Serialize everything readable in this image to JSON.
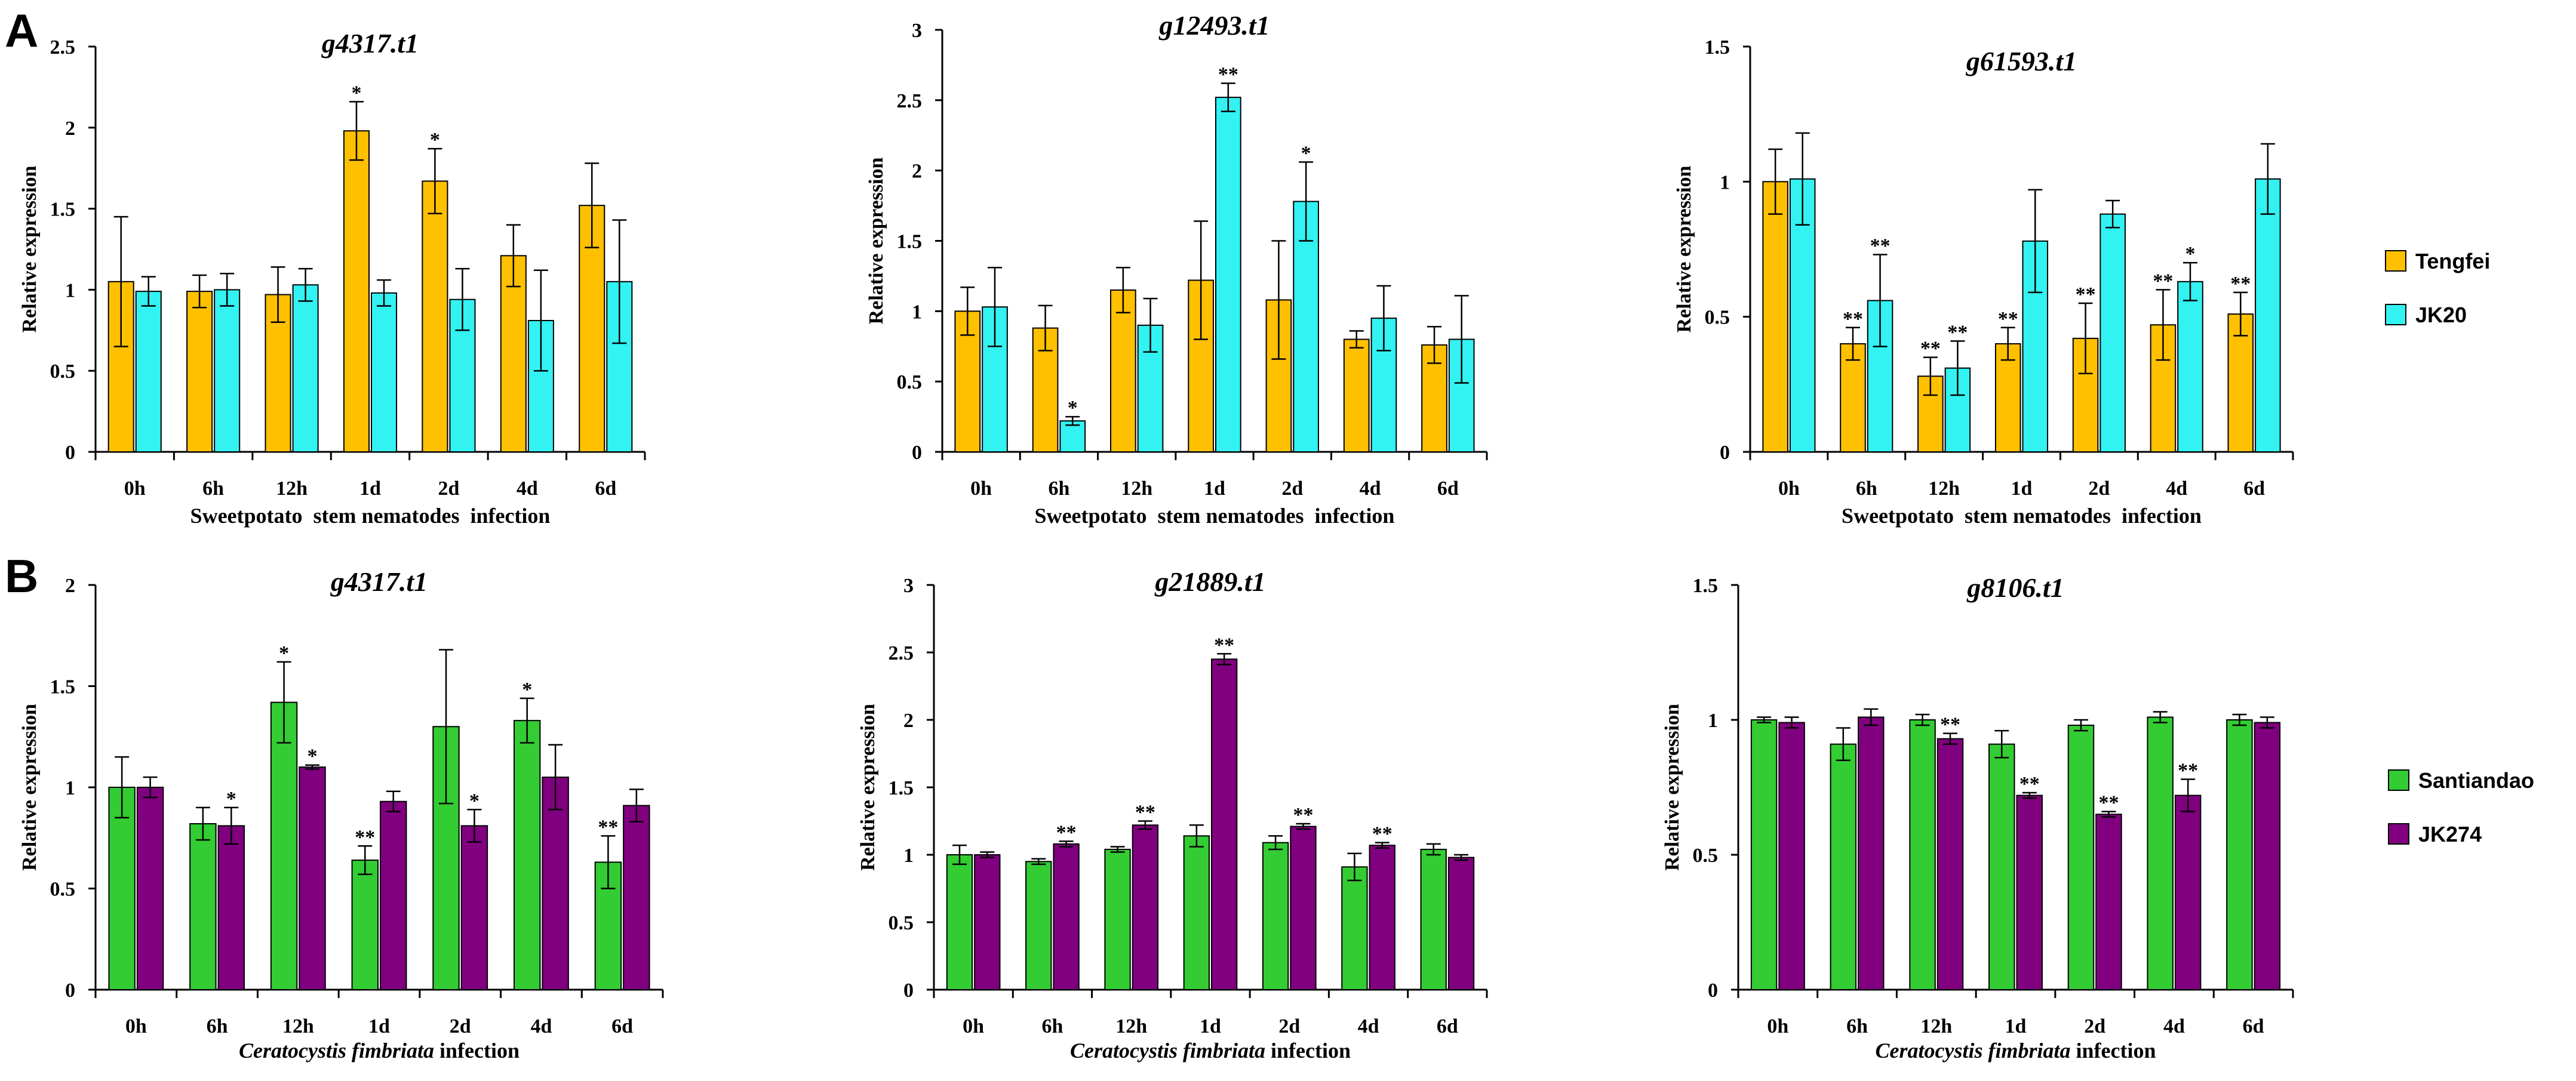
{
  "panel_labels": {
    "A": "A",
    "B": "B"
  },
  "ylabel": "Relative expression",
  "colors": {
    "tengfei": "#FFC000",
    "jk20": "#33F2F2",
    "santiandao": "#33CC33",
    "jk274": "#800080"
  },
  "legends": {
    "A": [
      {
        "name": "Tengfei",
        "color": "#FFC000"
      },
      {
        "name": "JK20",
        "color": "#33F2F2"
      }
    ],
    "B": [
      {
        "name": "Santiandao",
        "color": "#33CC33"
      },
      {
        "name": "JK274",
        "color": "#800080"
      }
    ]
  },
  "chart_data": [
    {
      "type": "bar",
      "panel": "A",
      "title": "g4317.t1",
      "xlabel": "Sweetpotato  stem nematodes  infection",
      "ylabel": "Relative expression",
      "categories": [
        "0h",
        "6h",
        "12h",
        "1d",
        "2d",
        "4d",
        "6d"
      ],
      "ylim": [
        0,
        2.5
      ],
      "yticks": [
        "0",
        "0.5",
        "1",
        "1.5",
        "2",
        "2.5"
      ],
      "series": [
        {
          "name": "Tengfei",
          "values": [
            1.05,
            0.99,
            0.97,
            1.98,
            1.67,
            1.21,
            1.52
          ],
          "errors": [
            0.4,
            0.1,
            0.17,
            0.18,
            0.2,
            0.19,
            0.26
          ],
          "sig": [
            "",
            "",
            "",
            "*",
            "*",
            "",
            ""
          ]
        },
        {
          "name": "JK20",
          "values": [
            0.99,
            1.0,
            1.03,
            0.98,
            0.94,
            0.81,
            1.05
          ],
          "errors": [
            0.09,
            0.1,
            0.1,
            0.08,
            0.19,
            0.31,
            0.38
          ],
          "sig": [
            "",
            "",
            "",
            "",
            "",
            "",
            ""
          ]
        }
      ]
    },
    {
      "type": "bar",
      "panel": "A",
      "title": "g12493.t1",
      "xlabel": "Sweetpotato  stem nematodes  infection",
      "ylabel": "Relative expression",
      "categories": [
        "0h",
        "6h",
        "12h",
        "1d",
        "2d",
        "4d",
        "6d"
      ],
      "ylim": [
        0,
        3
      ],
      "yticks": [
        "0",
        "0.5",
        "1",
        "1.5",
        "2",
        "2.5",
        "3"
      ],
      "series": [
        {
          "name": "Tengfei",
          "values": [
            1.0,
            0.88,
            1.15,
            1.22,
            1.08,
            0.8,
            0.76
          ],
          "errors": [
            0.17,
            0.16,
            0.16,
            0.42,
            0.42,
            0.06,
            0.13
          ],
          "sig": [
            "",
            "",
            "",
            "",
            "",
            "",
            ""
          ]
        },
        {
          "name": "JK20",
          "values": [
            1.03,
            0.22,
            0.9,
            2.52,
            1.78,
            0.95,
            0.8
          ],
          "errors": [
            0.28,
            0.03,
            0.19,
            0.1,
            0.28,
            0.23,
            0.31
          ],
          "sig": [
            "",
            "*",
            "",
            "**",
            "*",
            "",
            ""
          ]
        }
      ]
    },
    {
      "type": "bar",
      "panel": "A",
      "title": "g61593.t1",
      "xlabel": "Sweetpotato  stem nematodes  infection",
      "ylabel": "Relative expression",
      "categories": [
        "0h",
        "6h",
        "12h",
        "1d",
        "2d",
        "4d",
        "6d"
      ],
      "ylim": [
        0,
        1.5
      ],
      "yticks": [
        "0",
        "0.5",
        "1",
        "1.5"
      ],
      "series": [
        {
          "name": "Tengfei",
          "values": [
            1.0,
            0.4,
            0.28,
            0.4,
            0.42,
            0.47,
            0.51
          ],
          "errors": [
            0.12,
            0.06,
            0.07,
            0.06,
            0.13,
            0.13,
            0.08
          ],
          "sig": [
            "",
            "**",
            "**",
            "**",
            "**",
            "**",
            "**"
          ]
        },
        {
          "name": "JK20",
          "values": [
            1.01,
            0.56,
            0.31,
            0.78,
            0.88,
            0.63,
            1.01
          ],
          "errors": [
            0.17,
            0.17,
            0.1,
            0.19,
            0.05,
            0.07,
            0.13
          ],
          "sig": [
            "",
            "**",
            "**",
            "",
            "",
            "*",
            ""
          ]
        }
      ]
    },
    {
      "type": "bar",
      "panel": "B",
      "title": "g4317.t1",
      "xlabel_italic": "Ceratocystis fimbriata",
      "xlabel_rest": " infection",
      "ylabel": "Relative expression",
      "categories": [
        "0h",
        "6h",
        "12h",
        "1d",
        "2d",
        "4d",
        "6d"
      ],
      "ylim": [
        0,
        2
      ],
      "yticks": [
        "0",
        "0.5",
        "1",
        "1.5",
        "2"
      ],
      "series": [
        {
          "name": "Santiandao",
          "values": [
            1.0,
            0.82,
            1.42,
            0.64,
            1.3,
            1.33,
            0.63
          ],
          "errors": [
            0.15,
            0.08,
            0.2,
            0.07,
            0.38,
            0.11,
            0.13
          ],
          "sig": [
            "",
            "",
            "*",
            "**",
            "",
            "*",
            "**"
          ]
        },
        {
          "name": "JK274",
          "values": [
            1.0,
            0.81,
            1.1,
            0.93,
            0.81,
            1.05,
            0.91
          ],
          "errors": [
            0.05,
            0.09,
            0.01,
            0.05,
            0.08,
            0.16,
            0.08
          ],
          "sig": [
            "",
            "*",
            "*",
            "",
            "*",
            "",
            ""
          ]
        }
      ]
    },
    {
      "type": "bar",
      "panel": "B",
      "title": "g21889.t1",
      "xlabel_italic": "Ceratocystis fimbriata",
      "xlabel_rest": " infection",
      "ylabel": "Relative expression",
      "categories": [
        "0h",
        "6h",
        "12h",
        "1d",
        "2d",
        "4d",
        "6d"
      ],
      "ylim": [
        0,
        3
      ],
      "yticks": [
        "0",
        "0.5",
        "1",
        "1.5",
        "2",
        "2.5",
        "3"
      ],
      "series": [
        {
          "name": "Santiandao",
          "values": [
            1.0,
            0.95,
            1.04,
            1.14,
            1.09,
            0.91,
            1.04
          ],
          "errors": [
            0.07,
            0.02,
            0.02,
            0.08,
            0.05,
            0.1,
            0.04
          ],
          "sig": [
            "",
            "",
            "",
            "",
            "",
            "",
            ""
          ]
        },
        {
          "name": "JK274",
          "values": [
            1.0,
            1.08,
            1.22,
            2.45,
            1.21,
            1.07,
            0.98
          ],
          "errors": [
            0.02,
            0.02,
            0.03,
            0.04,
            0.02,
            0.02,
            0.02
          ],
          "sig": [
            "",
            "**",
            "**",
            "**",
            "**",
            "**",
            ""
          ]
        }
      ]
    },
    {
      "type": "bar",
      "panel": "B",
      "title": "g8106.t1",
      "xlabel_italic": "Ceratocystis fimbriata",
      "xlabel_rest": " infection",
      "ylabel": "Relative expression",
      "categories": [
        "0h",
        "6h",
        "12h",
        "1d",
        "2d",
        "4d",
        "6d"
      ],
      "ylim": [
        0,
        1.5
      ],
      "yticks": [
        "0",
        "0.5",
        "1",
        "1.5"
      ],
      "series": [
        {
          "name": "Santiandao",
          "values": [
            1.0,
            0.91,
            1.0,
            0.91,
            0.98,
            1.01,
            1.0
          ],
          "errors": [
            0.01,
            0.06,
            0.02,
            0.05,
            0.02,
            0.02,
            0.02
          ],
          "sig": [
            "",
            "",
            "",
            "",
            "",
            "",
            ""
          ]
        },
        {
          "name": "JK274",
          "values": [
            0.99,
            1.01,
            0.93,
            0.72,
            0.65,
            0.72,
            0.99
          ],
          "errors": [
            0.02,
            0.03,
            0.02,
            0.01,
            0.01,
            0.06,
            0.02
          ],
          "sig": [
            "",
            "",
            "**",
            "**",
            "**",
            "**",
            ""
          ]
        }
      ]
    }
  ]
}
